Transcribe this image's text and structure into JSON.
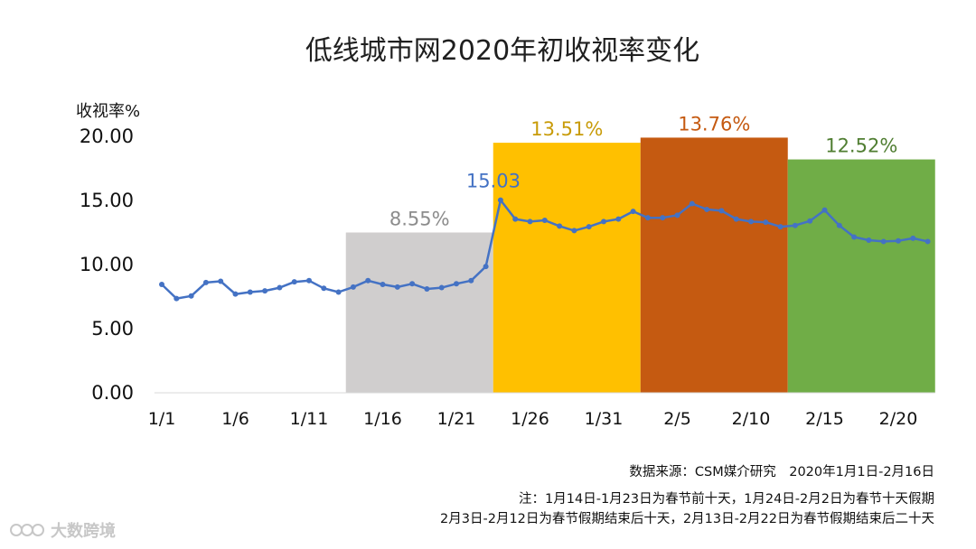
{
  "chart_data": {
    "type": "line",
    "title": "低线城市网2020年初收视率变化",
    "ylabel": "收视率%",
    "xlabel": "",
    "ylim": [
      0,
      20
    ],
    "yticks": [
      "0.00",
      "5.00",
      "10.00",
      "15.00",
      "20.00"
    ],
    "x_tick_labels": [
      "1/1",
      "1/6",
      "1/11",
      "1/16",
      "1/21",
      "1/26",
      "1/31",
      "2/5",
      "2/10",
      "2/15",
      "2/20"
    ],
    "series": [
      {
        "name": "收视率",
        "color": "#4472c4",
        "x": [
          "1/1",
          "1/2",
          "1/3",
          "1/4",
          "1/5",
          "1/6",
          "1/7",
          "1/8",
          "1/9",
          "1/10",
          "1/11",
          "1/12",
          "1/13",
          "1/14",
          "1/15",
          "1/16",
          "1/17",
          "1/18",
          "1/19",
          "1/20",
          "1/21",
          "1/22",
          "1/23",
          "1/24",
          "1/25",
          "1/26",
          "1/27",
          "1/28",
          "1/29",
          "1/30",
          "1/31",
          "2/1",
          "2/2",
          "2/3",
          "2/4",
          "2/5",
          "2/6",
          "2/7",
          "2/8",
          "2/9",
          "2/10",
          "2/11",
          "2/12",
          "2/13",
          "2/14",
          "2/15",
          "2/16",
          "2/17",
          "2/18",
          "2/19",
          "2/20",
          "2/21",
          "2/22"
        ],
        "values": [
          8.45,
          7.35,
          7.55,
          8.6,
          8.7,
          7.7,
          7.85,
          7.95,
          8.2,
          8.65,
          8.75,
          8.15,
          7.85,
          8.25,
          8.75,
          8.45,
          8.25,
          8.5,
          8.1,
          8.2,
          8.5,
          8.75,
          9.85,
          15.03,
          13.55,
          13.35,
          13.45,
          13.0,
          12.65,
          12.95,
          13.35,
          13.55,
          14.15,
          13.65,
          13.65,
          13.85,
          14.75,
          14.3,
          14.2,
          13.55,
          13.35,
          13.3,
          12.95,
          13.05,
          13.4,
          14.25,
          13.05,
          12.15,
          11.9,
          11.8,
          11.85,
          12.05,
          11.8
        ]
      }
    ],
    "periods": [
      {
        "name": "春节前十天",
        "range": [
          "1/14",
          "1/23"
        ],
        "value_label": "8.55%",
        "value": 8.55,
        "fill": "#d0cece",
        "label_color": "#8c8c8c",
        "bar_height": 12.5
      },
      {
        "name": "春节十天假期",
        "range": [
          "1/24",
          "2/2"
        ],
        "value_label": "13.51%",
        "value": 13.51,
        "fill": "#ffc000",
        "label_color": "#c89b08",
        "bar_height": 19.5
      },
      {
        "name": "春节假期结束后十天",
        "range": [
          "2/3",
          "2/12"
        ],
        "value_label": "13.76%",
        "value": 13.76,
        "fill": "#c55a11",
        "label_color": "#c55a11",
        "bar_height": 19.9
      },
      {
        "name": "春节假期结束后二十天",
        "range": [
          "2/13",
          "2/22"
        ],
        "value_label": "12.52%",
        "value": 12.52,
        "fill": "#70ad47",
        "label_color": "#507e32",
        "bar_height": 18.2
      }
    ],
    "annotations": [
      {
        "x": "1/24",
        "text": "15.03",
        "color": "#4472c4"
      }
    ]
  },
  "source_text": "数据来源：CSM媒介研究　2020年1月1日-2月16日",
  "note_line1": "注：1月14日-1月23日为春节前十天，1月24日-2月2日为春节十天假期",
  "note_line2": "2月3日-2月12日为春节假期结束后十天，2月13日-2月22日为春节假期结束后二十天",
  "watermark": {
    "icon": "watermark-logo-icon",
    "text": "大数跨境"
  }
}
